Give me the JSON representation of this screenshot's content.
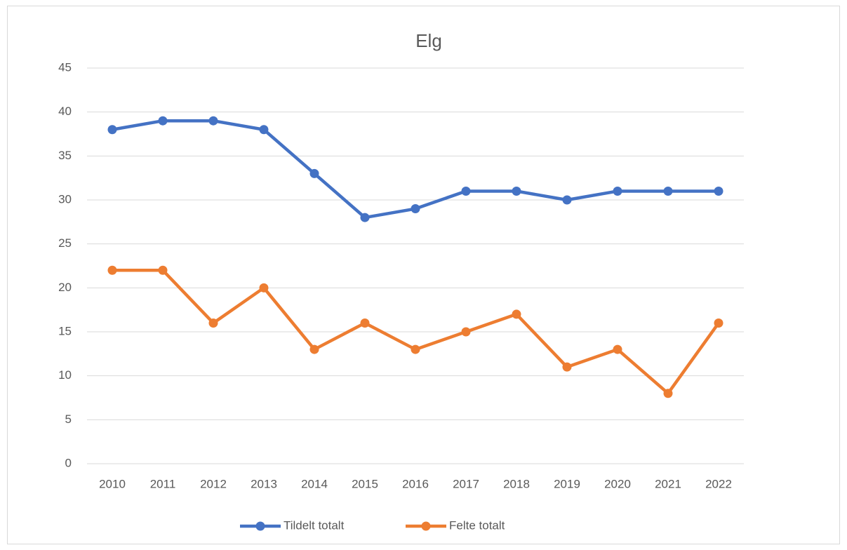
{
  "chart_data": {
    "type": "line",
    "title": "Elg",
    "categories": [
      "2010",
      "2011",
      "2012",
      "2013",
      "2014",
      "2015",
      "2016",
      "2017",
      "2018",
      "2019",
      "2020",
      "2021",
      "2022"
    ],
    "series": [
      {
        "name": "Tildelt totalt",
        "color": "#4472c4",
        "values": [
          38,
          39,
          39,
          38,
          33,
          28,
          29,
          31,
          31,
          30,
          31,
          31,
          31
        ]
      },
      {
        "name": "Felte totalt",
        "color": "#ed7d31",
        "values": [
          22,
          22,
          16,
          20,
          13,
          16,
          13,
          15,
          17,
          11,
          13,
          8,
          16
        ]
      }
    ],
    "ylim": [
      0,
      45
    ],
    "yticks": [
      0,
      5,
      10,
      15,
      20,
      25,
      30,
      35,
      40,
      45
    ],
    "grid": true,
    "legend": "bottom"
  }
}
